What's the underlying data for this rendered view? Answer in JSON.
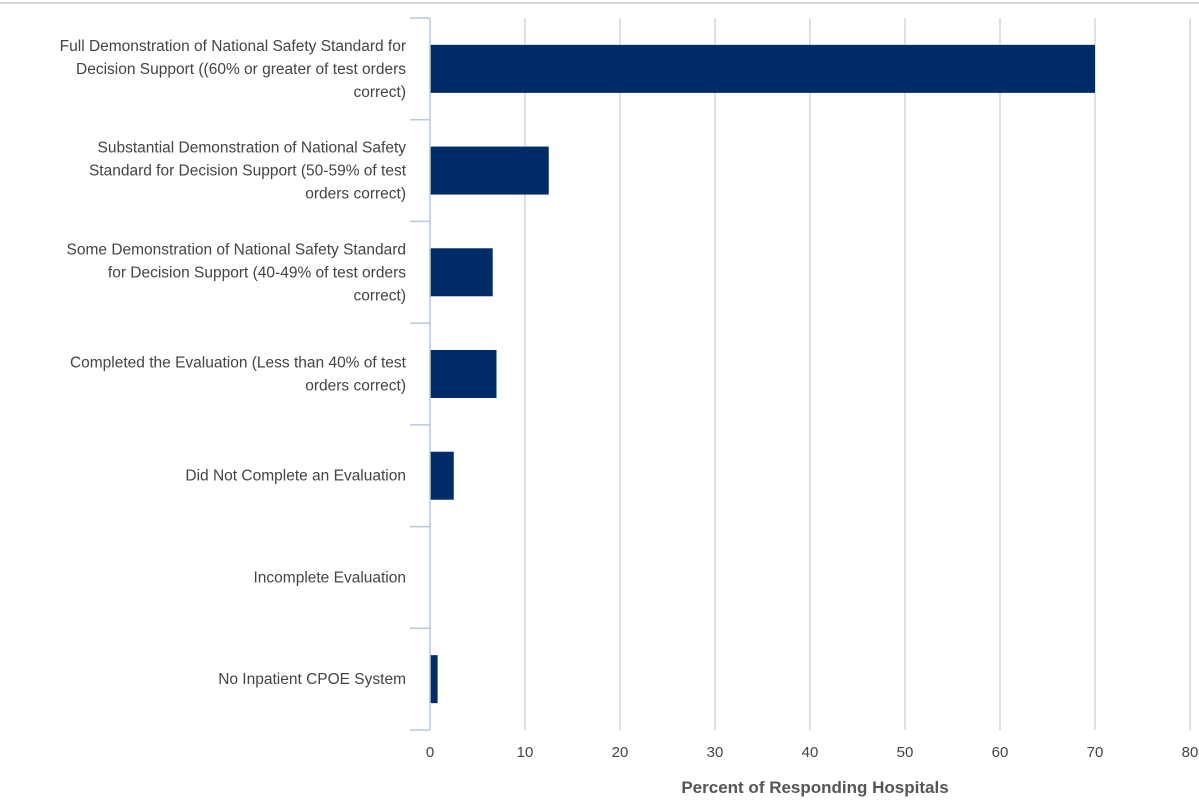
{
  "chart_data": {
    "type": "bar",
    "orientation": "horizontal",
    "categories": [
      [
        "Full Demonstration of National Safety Standard for",
        "Decision Support ((60% or greater of test orders",
        "correct)"
      ],
      [
        "Substantial Demonstration of National Safety",
        "Standard for Decision Support (50-59% of test",
        "orders correct)"
      ],
      [
        "Some Demonstration of National Safety Standard",
        "for Decision Support (40-49% of test orders",
        "correct)"
      ],
      [
        "Completed the Evaluation (Less than 40% of test",
        "orders correct)"
      ],
      [
        "Did Not Complete an Evaluation"
      ],
      [
        "Incomplete Evaluation"
      ],
      [
        "No Inpatient CPOE System"
      ]
    ],
    "values": [
      70,
      12.5,
      6.6,
      7.0,
      2.5,
      0,
      0.8
    ],
    "xlim": [
      0,
      80
    ],
    "xticks": [
      0,
      10,
      20,
      30,
      40,
      50,
      60,
      70,
      80
    ],
    "xlabel": "Percent of Responding Hospitals",
    "grid": true,
    "colors": {
      "bar": "#002b69",
      "grid": "#d3d7dc",
      "axis": "#b8c8de",
      "text": "#444444",
      "top_border": "#cccccc"
    }
  }
}
